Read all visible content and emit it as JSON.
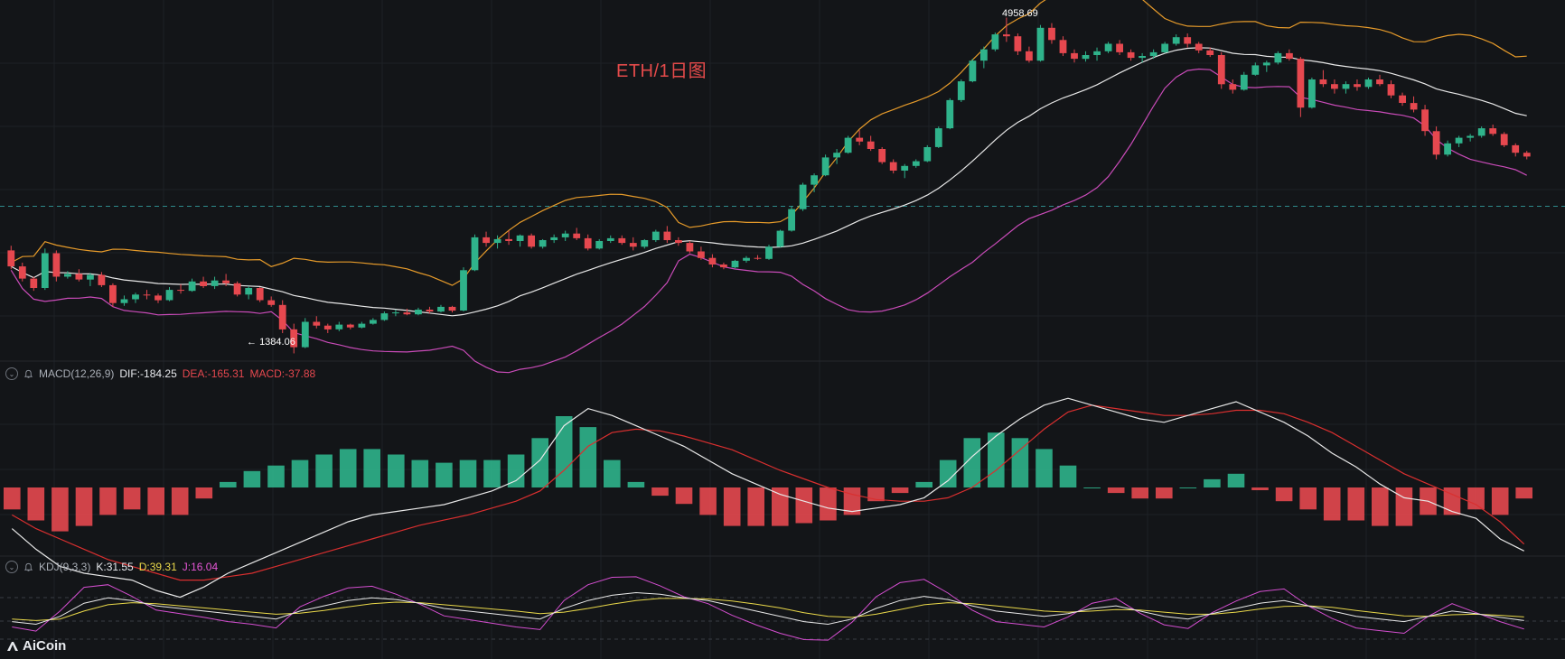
{
  "title": "ETH/1日图",
  "colors": {
    "up": "#2fb38b",
    "down": "#e6484f",
    "middle": "#e8e8e8",
    "upper": "#e59a2a",
    "lower": "#c94bb8",
    "dif": "#e8e8e8",
    "dea": "#d92f2f",
    "k": "#e8e8e8",
    "d": "#e9d84a",
    "j": "#d44ed0",
    "grid": "#1e2126",
    "dashed": "#2d8a8a"
  },
  "annotations": {
    "high": "4958.69",
    "low": "1384.06",
    "low_arrow": "←"
  },
  "macd": {
    "name": "MACD(12,26,9)",
    "dif_label": "DIF:-184.25",
    "dea_label": "DEA:-165.31",
    "macd_label": "MACD:-37.88"
  },
  "kdj": {
    "name": "KDJ(9,3,3)",
    "k_label": "K:31.55",
    "d_label": "D:39.31",
    "j_label": "J:16.04"
  },
  "brand": {
    "name": "AiCoin",
    "logo_icon": "aicoin-logo-icon"
  },
  "chart_data": {
    "type": "candlestick",
    "symbol": "ETH",
    "interval": "1日",
    "price_range": [
      1350,
      5050
    ],
    "current_price_line": 2950,
    "candles": [
      [
        2480,
        2530,
        2280,
        2310
      ],
      [
        2310,
        2350,
        2150,
        2180
      ],
      [
        2180,
        2200,
        2050,
        2080
      ],
      [
        2080,
        2500,
        2060,
        2450
      ],
      [
        2450,
        2480,
        2150,
        2200
      ],
      [
        2200,
        2260,
        2180,
        2230
      ],
      [
        2230,
        2280,
        2150,
        2170
      ],
      [
        2170,
        2240,
        2100,
        2220
      ],
      [
        2220,
        2250,
        2090,
        2110
      ],
      [
        2110,
        2130,
        1880,
        1920
      ],
      [
        1920,
        2000,
        1890,
        1960
      ],
      [
        1960,
        2030,
        1920,
        2010
      ],
      [
        2010,
        2060,
        1960,
        2000
      ],
      [
        2000,
        2020,
        1920,
        1950
      ],
      [
        1950,
        2090,
        1940,
        2060
      ],
      [
        2060,
        2120,
        2020,
        2050
      ],
      [
        2050,
        2180,
        2040,
        2150
      ],
      [
        2150,
        2200,
        2080,
        2100
      ],
      [
        2100,
        2200,
        2070,
        2160
      ],
      [
        2160,
        2230,
        2100,
        2130
      ],
      [
        2130,
        2150,
        1990,
        2010
      ],
      [
        2010,
        2100,
        1960,
        2080
      ],
      [
        2080,
        2090,
        1930,
        1950
      ],
      [
        1950,
        1990,
        1880,
        1900
      ],
      [
        1900,
        1950,
        1600,
        1640
      ],
      [
        1640,
        1700,
        1384,
        1450
      ],
      [
        1450,
        1760,
        1440,
        1720
      ],
      [
        1720,
        1780,
        1650,
        1680
      ],
      [
        1680,
        1700,
        1600,
        1640
      ],
      [
        1640,
        1720,
        1620,
        1690
      ],
      [
        1690,
        1700,
        1640,
        1660
      ],
      [
        1660,
        1720,
        1650,
        1700
      ],
      [
        1700,
        1760,
        1690,
        1740
      ],
      [
        1740,
        1830,
        1730,
        1810
      ],
      [
        1810,
        1850,
        1780,
        1820
      ],
      [
        1820,
        1860,
        1790,
        1800
      ],
      [
        1800,
        1870,
        1790,
        1850
      ],
      [
        1850,
        1880,
        1810,
        1830
      ],
      [
        1830,
        1900,
        1820,
        1880
      ],
      [
        1880,
        1890,
        1820,
        1840
      ],
      [
        1840,
        2300,
        1830,
        2270
      ],
      [
        2270,
        2650,
        2260,
        2620
      ],
      [
        2620,
        2680,
        2520,
        2560
      ],
      [
        2560,
        2640,
        2500,
        2600
      ],
      [
        2600,
        2690,
        2540,
        2580
      ],
      [
        2580,
        2650,
        2520,
        2640
      ],
      [
        2640,
        2660,
        2500,
        2520
      ],
      [
        2520,
        2600,
        2500,
        2590
      ],
      [
        2590,
        2650,
        2560,
        2620
      ],
      [
        2620,
        2690,
        2580,
        2660
      ],
      [
        2660,
        2720,
        2590,
        2610
      ],
      [
        2610,
        2650,
        2480,
        2500
      ],
      [
        2500,
        2600,
        2490,
        2580
      ],
      [
        2580,
        2640,
        2560,
        2610
      ],
      [
        2610,
        2640,
        2540,
        2560
      ],
      [
        2560,
        2620,
        2480,
        2520
      ],
      [
        2520,
        2600,
        2500,
        2590
      ],
      [
        2590,
        2700,
        2570,
        2680
      ],
      [
        2680,
        2740,
        2560,
        2590
      ],
      [
        2590,
        2620,
        2530,
        2560
      ],
      [
        2560,
        2580,
        2450,
        2470
      ],
      [
        2470,
        2520,
        2380,
        2400
      ],
      [
        2400,
        2440,
        2300,
        2330
      ],
      [
        2330,
        2350,
        2280,
        2300
      ],
      [
        2300,
        2380,
        2290,
        2370
      ],
      [
        2370,
        2420,
        2350,
        2400
      ],
      [
        2400,
        2430,
        2380,
        2390
      ],
      [
        2390,
        2540,
        2380,
        2520
      ],
      [
        2520,
        2700,
        2510,
        2690
      ],
      [
        2690,
        2950,
        2680,
        2920
      ],
      [
        2920,
        3200,
        2900,
        3180
      ],
      [
        3180,
        3300,
        3100,
        3280
      ],
      [
        3280,
        3500,
        3270,
        3470
      ],
      [
        3470,
        3560,
        3400,
        3520
      ],
      [
        3520,
        3700,
        3510,
        3680
      ],
      [
        3680,
        3760,
        3600,
        3640
      ],
      [
        3640,
        3700,
        3540,
        3560
      ],
      [
        3560,
        3580,
        3400,
        3420
      ],
      [
        3420,
        3450,
        3300,
        3330
      ],
      [
        3330,
        3400,
        3250,
        3380
      ],
      [
        3380,
        3450,
        3360,
        3430
      ],
      [
        3430,
        3600,
        3420,
        3580
      ],
      [
        3580,
        3800,
        3570,
        3780
      ],
      [
        3780,
        4100,
        3770,
        4080
      ],
      [
        4080,
        4300,
        4060,
        4280
      ],
      [
        4280,
        4520,
        4270,
        4500
      ],
      [
        4500,
        4650,
        4420,
        4620
      ],
      [
        4620,
        4800,
        4600,
        4780
      ],
      [
        4780,
        4959,
        4700,
        4760
      ],
      [
        4760,
        4790,
        4560,
        4600
      ],
      [
        4600,
        4650,
        4480,
        4500
      ],
      [
        4500,
        4880,
        4490,
        4850
      ],
      [
        4850,
        4900,
        4680,
        4720
      ],
      [
        4720,
        4760,
        4550,
        4580
      ],
      [
        4580,
        4620,
        4480,
        4520
      ],
      [
        4520,
        4600,
        4490,
        4560
      ],
      [
        4560,
        4640,
        4500,
        4600
      ],
      [
        4600,
        4700,
        4580,
        4680
      ],
      [
        4680,
        4720,
        4560,
        4590
      ],
      [
        4590,
        4620,
        4500,
        4530
      ],
      [
        4530,
        4580,
        4480,
        4550
      ],
      [
        4550,
        4620,
        4520,
        4590
      ],
      [
        4590,
        4700,
        4580,
        4680
      ],
      [
        4680,
        4780,
        4660,
        4750
      ],
      [
        4750,
        4790,
        4640,
        4680
      ],
      [
        4680,
        4700,
        4580,
        4610
      ],
      [
        4610,
        4640,
        4540,
        4560
      ],
      [
        4560,
        4590,
        4200,
        4250
      ],
      [
        4250,
        4300,
        4150,
        4190
      ],
      [
        4190,
        4380,
        4180,
        4350
      ],
      [
        4350,
        4480,
        4340,
        4450
      ],
      [
        4450,
        4500,
        4380,
        4480
      ],
      [
        4480,
        4600,
        4460,
        4580
      ],
      [
        4580,
        4620,
        4500,
        4520
      ],
      [
        4520,
        4540,
        3900,
        4000
      ],
      [
        4000,
        4320,
        3990,
        4300
      ],
      [
        4300,
        4400,
        4220,
        4250
      ],
      [
        4250,
        4300,
        4150,
        4200
      ],
      [
        4200,
        4280,
        4150,
        4250
      ],
      [
        4250,
        4300,
        4180,
        4220
      ],
      [
        4220,
        4320,
        4200,
        4300
      ],
      [
        4300,
        4350,
        4230,
        4250
      ],
      [
        4250,
        4290,
        4100,
        4130
      ],
      [
        4130,
        4160,
        4020,
        4050
      ],
      [
        4050,
        4120,
        3950,
        3980
      ],
      [
        3980,
        4030,
        3700,
        3750
      ],
      [
        3750,
        3800,
        3450,
        3500
      ],
      [
        3500,
        3650,
        3480,
        3620
      ],
      [
        3620,
        3700,
        3580,
        3680
      ],
      [
        3680,
        3720,
        3640,
        3700
      ],
      [
        3700,
        3800,
        3680,
        3780
      ],
      [
        3780,
        3820,
        3700,
        3720
      ],
      [
        3720,
        3740,
        3580,
        3600
      ],
      [
        3600,
        3620,
        3480,
        3520
      ],
      [
        3520,
        3540,
        3450,
        3480
      ]
    ],
    "macd_series": {
      "dif": [
        -120,
        -180,
        -230,
        -250,
        -260,
        -270,
        -300,
        -320,
        -290,
        -250,
        -220,
        -190,
        -160,
        -130,
        -100,
        -80,
        -70,
        -60,
        -50,
        -30,
        -10,
        20,
        80,
        180,
        230,
        210,
        180,
        150,
        120,
        80,
        40,
        10,
        -20,
        -40,
        -60,
        -70,
        -60,
        -50,
        -30,
        20,
        90,
        150,
        200,
        240,
        260,
        240,
        220,
        200,
        190,
        210,
        230,
        250,
        220,
        190,
        150,
        100,
        60,
        10,
        -30,
        -40,
        -70,
        -90,
        -150,
        -185
      ],
      "dea": [
        -80,
        -120,
        -150,
        -180,
        -210,
        -230,
        -250,
        -270,
        -270,
        -260,
        -250,
        -230,
        -210,
        -190,
        -170,
        -150,
        -130,
        -110,
        -95,
        -80,
        -60,
        -40,
        -10,
        50,
        120,
        160,
        170,
        165,
        150,
        130,
        110,
        80,
        50,
        25,
        0,
        -20,
        -35,
        -40,
        -40,
        -30,
        0,
        50,
        110,
        170,
        220,
        240,
        230,
        220,
        210,
        210,
        215,
        225,
        225,
        215,
        190,
        160,
        120,
        80,
        40,
        10,
        -20,
        -50,
        -100,
        -165
      ]
    },
    "kdj_series": {
      "k": [
        30,
        25,
        40,
        65,
        75,
        70,
        60,
        55,
        50,
        45,
        40,
        35,
        50,
        60,
        70,
        75,
        72,
        65,
        55,
        50,
        45,
        40,
        35,
        55,
        70,
        80,
        85,
        82,
        75,
        70,
        60,
        50,
        40,
        30,
        25,
        35,
        55,
        70,
        78,
        72,
        60,
        50,
        45,
        40,
        45,
        55,
        60,
        50,
        40,
        35,
        45,
        55,
        65,
        70,
        60,
        50,
        40,
        35,
        30,
        40,
        50,
        45,
        38,
        32
      ],
      "d": [
        35,
        32,
        35,
        50,
        62,
        66,
        64,
        60,
        56,
        52,
        48,
        44,
        46,
        51,
        58,
        64,
        67,
        66,
        62,
        58,
        54,
        50,
        45,
        48,
        55,
        63,
        70,
        74,
        74,
        73,
        69,
        63,
        56,
        47,
        40,
        38,
        44,
        53,
        62,
        66,
        64,
        60,
        55,
        50,
        48,
        50,
        53,
        52,
        48,
        44,
        44,
        48,
        54,
        59,
        60,
        57,
        51,
        46,
        41,
        40,
        43,
        44,
        42,
        39
      ],
      "j": [
        20,
        12,
        50,
        95,
        100,
        78,
        52,
        45,
        38,
        30,
        25,
        18,
        58,
        78,
        94,
        97,
        82,
        63,
        41,
        34,
        27,
        20,
        15,
        70,
        100,
        114,
        115,
        98,
        77,
        64,
        42,
        24,
        8,
        -4,
        -5,
        29,
        77,
        104,
        110,
        84,
        52,
        30,
        25,
        20,
        39,
        65,
        74,
        46,
        24,
        17,
        47,
        69,
        87,
        92,
        60,
        36,
        18,
        13,
        8,
        40,
        64,
        47,
        30,
        16
      ]
    }
  }
}
